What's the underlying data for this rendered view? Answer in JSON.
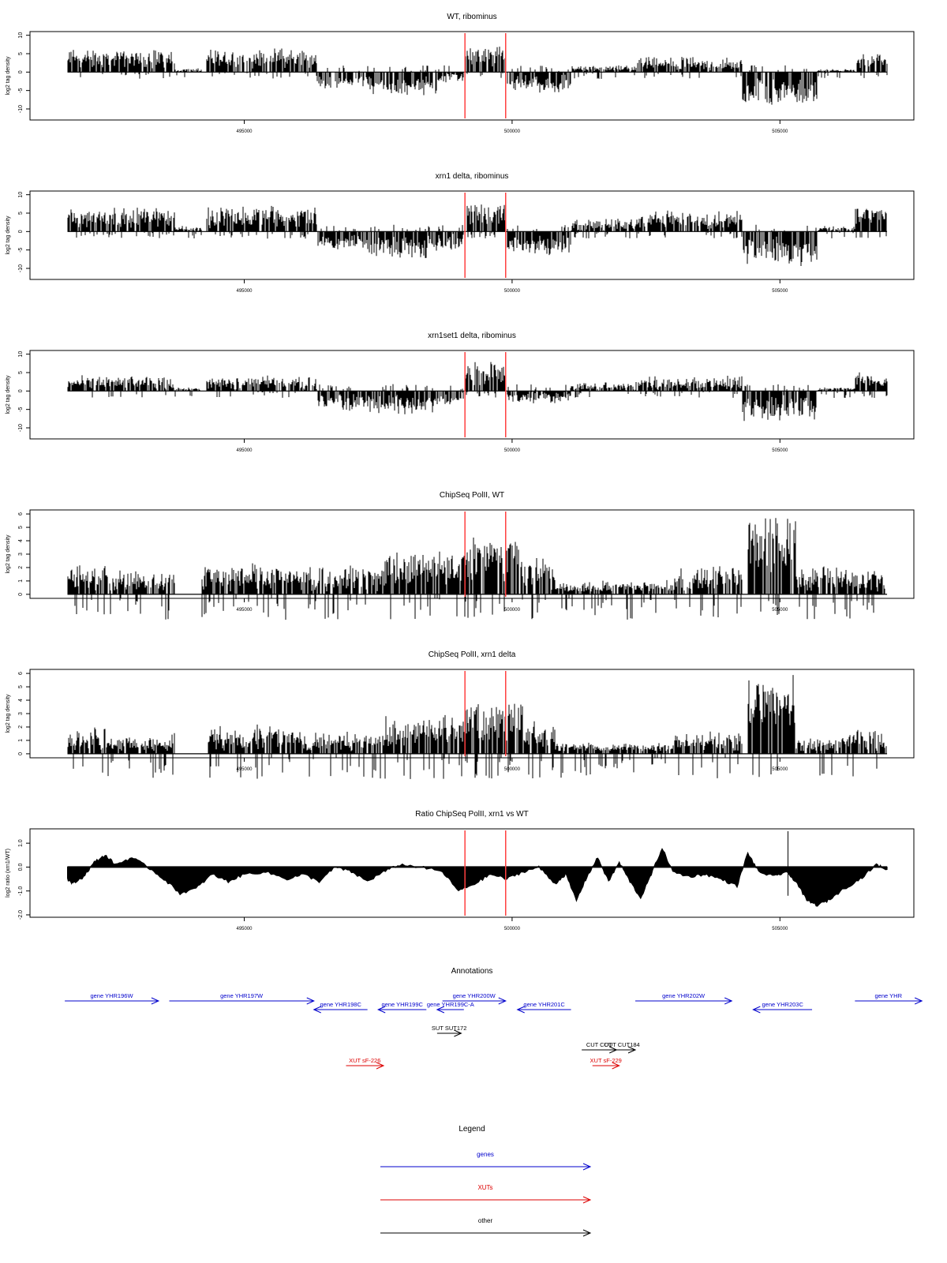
{
  "chart_data": [
    {
      "type": "bar",
      "title": "WT, ribominus",
      "ylabel": "log2 tag density",
      "ylim": [
        -13,
        11
      ],
      "yticks": [
        10,
        5,
        0,
        -5,
        -10
      ],
      "xlim": [
        491000,
        507500
      ],
      "xticks": [
        "495000",
        "500000",
        "505000"
      ],
      "markers": [
        499120,
        499880
      ],
      "series": [
        {
          "x0": 491700,
          "x1": 493700,
          "level": 5,
          "sign": 1,
          "noise": 2.2
        },
        {
          "x0": 493700,
          "x1": 494200,
          "level": 0.5,
          "sign": 1,
          "noise": 1.0
        },
        {
          "x0": 494300,
          "x1": 496350,
          "level": 5,
          "sign": 1,
          "noise": 2.2
        },
        {
          "x0": 496350,
          "x1": 497300,
          "level": 3.5,
          "sign": -1,
          "noise": 2.0
        },
        {
          "x0": 497300,
          "x1": 498600,
          "level": 5,
          "sign": -1,
          "noise": 2.2
        },
        {
          "x0": 498600,
          "x1": 499100,
          "level": 2,
          "sign": -1,
          "noise": 1.5
        },
        {
          "x0": 499120,
          "x1": 499880,
          "level": 6,
          "sign": 1,
          "noise": 2.0
        },
        {
          "x0": 499900,
          "x1": 501100,
          "level": 4.5,
          "sign": -1,
          "noise": 2.0
        },
        {
          "x0": 501100,
          "x1": 502300,
          "level": 1,
          "sign": 1,
          "noise": 2.0
        },
        {
          "x0": 502300,
          "x1": 504300,
          "level": 3,
          "sign": 1,
          "noise": 2.2
        },
        {
          "x0": 504300,
          "x1": 505700,
          "level": 7.5,
          "sign": -1,
          "noise": 3.0
        },
        {
          "x0": 505700,
          "x1": 506400,
          "level": 0.4,
          "sign": 1,
          "noise": 0.8
        },
        {
          "x0": 506400,
          "x1": 507000,
          "level": 4,
          "sign": 1,
          "noise": 2.0
        }
      ]
    },
    {
      "type": "bar",
      "title": "xrn1 delta, ribominus",
      "ylabel": "log2 tag density",
      "ylim": [
        -13,
        11
      ],
      "yticks": [
        10,
        5,
        0,
        -5,
        -10
      ],
      "xlim": [
        491000,
        507500
      ],
      "xticks": [
        "495000",
        "500000",
        "505000"
      ],
      "markers": [
        499120,
        499880
      ],
      "series": [
        {
          "x0": 491700,
          "x1": 493700,
          "level": 5.5,
          "sign": 1,
          "noise": 2.2
        },
        {
          "x0": 493700,
          "x1": 494200,
          "level": 1,
          "sign": 1,
          "noise": 1.0
        },
        {
          "x0": 494300,
          "x1": 496350,
          "level": 5.5,
          "sign": 1,
          "noise": 2.5
        },
        {
          "x0": 496350,
          "x1": 497300,
          "level": 4,
          "sign": -1,
          "noise": 2.5
        },
        {
          "x0": 497300,
          "x1": 498600,
          "level": 6,
          "sign": -1,
          "noise": 2.2
        },
        {
          "x0": 498600,
          "x1": 499100,
          "level": 4,
          "sign": -1,
          "noise": 2.0
        },
        {
          "x0": 499120,
          "x1": 499880,
          "level": 7,
          "sign": 1,
          "noise": 2.0
        },
        {
          "x0": 499900,
          "x1": 501100,
          "level": 5,
          "sign": -1,
          "noise": 2.0
        },
        {
          "x0": 501100,
          "x1": 502300,
          "level": 2.5,
          "sign": 1,
          "noise": 2.0
        },
        {
          "x0": 502300,
          "x1": 504300,
          "level": 4.5,
          "sign": 1,
          "noise": 2.2
        },
        {
          "x0": 504300,
          "x1": 505700,
          "level": 7.5,
          "sign": -1,
          "noise": 3.0
        },
        {
          "x0": 505700,
          "x1": 506400,
          "level": 1,
          "sign": 1,
          "noise": 1.0
        },
        {
          "x0": 506400,
          "x1": 507000,
          "level": 6,
          "sign": 1,
          "noise": 2.5
        }
      ]
    },
    {
      "type": "bar",
      "title": "xrn1set1 delta, ribominus",
      "ylabel": "log2 tag density",
      "ylim": [
        -13,
        11
      ],
      "yticks": [
        10,
        5,
        0,
        -5,
        -10
      ],
      "xlim": [
        491000,
        507500
      ],
      "xticks": [
        "495000",
        "500000",
        "505000"
      ],
      "markers": [
        499120,
        499880
      ],
      "series": [
        {
          "x0": 491700,
          "x1": 493700,
          "level": 3,
          "sign": 1,
          "noise": 2.0
        },
        {
          "x0": 493700,
          "x1": 494200,
          "level": 0.5,
          "sign": 1,
          "noise": 1.0
        },
        {
          "x0": 494300,
          "x1": 496350,
          "level": 3,
          "sign": 1,
          "noise": 2.0
        },
        {
          "x0": 496350,
          "x1": 497300,
          "level": 4,
          "sign": -1,
          "noise": 2.5
        },
        {
          "x0": 497300,
          "x1": 498600,
          "level": 5,
          "sign": -1,
          "noise": 2.5
        },
        {
          "x0": 498600,
          "x1": 499100,
          "level": 3,
          "sign": -1,
          "noise": 2.0
        },
        {
          "x0": 499120,
          "x1": 499880,
          "level": 6.5,
          "sign": 1,
          "noise": 2.2
        },
        {
          "x0": 499900,
          "x1": 501100,
          "level": 2.5,
          "sign": -1,
          "noise": 2.0
        },
        {
          "x0": 501100,
          "x1": 502300,
          "level": 1.5,
          "sign": 1,
          "noise": 2.0
        },
        {
          "x0": 502300,
          "x1": 504300,
          "level": 3,
          "sign": 1,
          "noise": 2.2
        },
        {
          "x0": 504300,
          "x1": 505700,
          "level": 6.5,
          "sign": -1,
          "noise": 3.0
        },
        {
          "x0": 505700,
          "x1": 506400,
          "level": 0.5,
          "sign": 1,
          "noise": 1.0
        },
        {
          "x0": 506400,
          "x1": 507000,
          "level": 4,
          "sign": 1,
          "noise": 2.0
        }
      ]
    },
    {
      "type": "bar",
      "title": "ChipSeq PolII, WT",
      "ylabel": "log2 tag density",
      "ylim": [
        -0.3,
        6.3
      ],
      "yticks": [
        0,
        1,
        2,
        3,
        4,
        5,
        6
      ],
      "xlim": [
        491000,
        507500
      ],
      "xticks": [
        "495000",
        "500000",
        "505000"
      ],
      "markers": [
        499120,
        499880
      ],
      "series": [
        {
          "x0": 491700,
          "x1": 492500,
          "level": 1.8,
          "sign": 1,
          "noise": 0.9
        },
        {
          "x0": 492500,
          "x1": 493700,
          "level": 1.3,
          "sign": 1,
          "noise": 1.0
        },
        {
          "x0": 494200,
          "x1": 496000,
          "level": 1.8,
          "sign": 1,
          "noise": 0.9
        },
        {
          "x0": 496000,
          "x1": 497600,
          "level": 1.6,
          "sign": 1,
          "noise": 1.0
        },
        {
          "x0": 497600,
          "x1": 499100,
          "level": 2.7,
          "sign": 1,
          "noise": 0.9
        },
        {
          "x0": 499100,
          "x1": 500200,
          "level": 3.6,
          "sign": 1,
          "noise": 0.8
        },
        {
          "x0": 500200,
          "x1": 500800,
          "level": 2.2,
          "sign": 1,
          "noise": 0.9
        },
        {
          "x0": 500800,
          "x1": 503000,
          "level": 0.6,
          "sign": 1,
          "noise": 0.9
        },
        {
          "x0": 503000,
          "x1": 504300,
          "level": 1.5,
          "sign": 1,
          "noise": 1.0
        },
        {
          "x0": 504400,
          "x1": 505300,
          "level": 5.4,
          "sign": 1,
          "noise": 0.8
        },
        {
          "x0": 505300,
          "x1": 506200,
          "level": 1.7,
          "sign": 1,
          "noise": 0.9
        },
        {
          "x0": 506200,
          "x1": 507000,
          "level": 1.5,
          "sign": 1,
          "noise": 1.0
        }
      ]
    },
    {
      "type": "bar",
      "title": "ChipSeq PolII, xrn1 delta",
      "ylabel": "log2 tag density",
      "ylim": [
        -0.3,
        6.3
      ],
      "yticks": [
        0,
        1,
        2,
        3,
        4,
        5,
        6
      ],
      "xlim": [
        491000,
        507500
      ],
      "xticks": [
        "495000",
        "500000",
        "505000"
      ],
      "markers": [
        499120,
        499880
      ],
      "series": [
        {
          "x0": 491700,
          "x1": 492500,
          "level": 1.5,
          "sign": 1,
          "noise": 0.9
        },
        {
          "x0": 492500,
          "x1": 493700,
          "level": 1.0,
          "sign": 1,
          "noise": 0.9
        },
        {
          "x0": 494300,
          "x1": 496000,
          "level": 1.6,
          "sign": 1,
          "noise": 0.9
        },
        {
          "x0": 496000,
          "x1": 497600,
          "level": 1.2,
          "sign": 1,
          "noise": 0.9
        },
        {
          "x0": 497600,
          "x1": 499100,
          "level": 2.4,
          "sign": 1,
          "noise": 0.9
        },
        {
          "x0": 499100,
          "x1": 500200,
          "level": 3.3,
          "sign": 1,
          "noise": 0.8
        },
        {
          "x0": 500200,
          "x1": 500800,
          "level": 2.0,
          "sign": 1,
          "noise": 0.9
        },
        {
          "x0": 500800,
          "x1": 503000,
          "level": 0.4,
          "sign": 1,
          "noise": 0.8
        },
        {
          "x0": 503000,
          "x1": 504300,
          "level": 1.2,
          "sign": 1,
          "noise": 0.9
        },
        {
          "x0": 504400,
          "x1": 505300,
          "level": 5.0,
          "sign": 1,
          "noise": 0.8
        },
        {
          "x0": 505300,
          "x1": 506200,
          "level": 0.8,
          "sign": 1,
          "noise": 0.8
        },
        {
          "x0": 506200,
          "x1": 507000,
          "level": 1.4,
          "sign": 1,
          "noise": 0.9
        }
      ]
    },
    {
      "type": "area",
      "title": "Ratio ChipSeq PolII, xrn1 vs WT",
      "ylabel": "log2 ratio (xrn1/WT)",
      "ylim": [
        -2.1,
        1.6
      ],
      "yticks": [
        1.0,
        0.0,
        -1.0,
        -2.0
      ],
      "ytick_labels": [
        "1.0",
        "0.0",
        "-1.0",
        "-2.0"
      ],
      "xlim": [
        491000,
        507500
      ],
      "xticks": [
        "495000",
        "500000",
        "505000"
      ],
      "markers": [
        499120,
        499880
      ],
      "spike": {
        "x": 505150,
        "hi": 1.5,
        "lo": -1.2
      },
      "points": [
        [
          491700,
          -0.5
        ],
        [
          491800,
          -0.7
        ],
        [
          492000,
          -0.4
        ],
        [
          492200,
          0.2
        ],
        [
          492400,
          0.5
        ],
        [
          492600,
          0.1
        ],
        [
          492900,
          0.4
        ],
        [
          493200,
          0.0
        ],
        [
          493500,
          -0.5
        ],
        [
          493800,
          -1.1
        ],
        [
          494100,
          -0.9
        ],
        [
          494400,
          -0.3
        ],
        [
          494700,
          -0.6
        ],
        [
          495000,
          -0.3
        ],
        [
          495400,
          -0.2
        ],
        [
          495800,
          -0.5
        ],
        [
          496100,
          -0.3
        ],
        [
          496400,
          -0.6
        ],
        [
          496700,
          0.0
        ],
        [
          497000,
          -0.2
        ],
        [
          497300,
          -0.6
        ],
        [
          497600,
          -0.2
        ],
        [
          497900,
          0.1
        ],
        [
          498300,
          0.0
        ],
        [
          498700,
          -0.2
        ],
        [
          499000,
          -1.0
        ],
        [
          499300,
          -0.7
        ],
        [
          499600,
          -0.3
        ],
        [
          499900,
          -0.5
        ],
        [
          500200,
          -0.2
        ],
        [
          500500,
          0.0
        ],
        [
          500800,
          -0.7
        ],
        [
          501000,
          -0.3
        ],
        [
          501200,
          -1.4
        ],
        [
          501400,
          -0.4
        ],
        [
          501600,
          0.4
        ],
        [
          501800,
          -0.6
        ],
        [
          502000,
          0.2
        ],
        [
          502200,
          -0.6
        ],
        [
          502400,
          -1.3
        ],
        [
          502600,
          -0.3
        ],
        [
          502800,
          0.8
        ],
        [
          503000,
          -0.2
        ],
        [
          503300,
          -0.4
        ],
        [
          503600,
          -0.3
        ],
        [
          503900,
          -0.5
        ],
        [
          504200,
          -0.8
        ],
        [
          504400,
          0.6
        ],
        [
          504600,
          -0.2
        ],
        [
          504900,
          -0.4
        ],
        [
          505100,
          -0.2
        ],
        [
          505300,
          -0.6
        ],
        [
          505500,
          -1.4
        ],
        [
          505700,
          -1.6
        ],
        [
          505900,
          -1.4
        ],
        [
          506200,
          -0.9
        ],
        [
          506500,
          -0.5
        ],
        [
          506800,
          0.1
        ],
        [
          507000,
          -0.1
        ]
      ]
    }
  ],
  "annotations": {
    "title": "Annotations",
    "xlim": [
      491000,
      507500
    ],
    "features": [
      {
        "label": "gene YHR196W",
        "x0": 491650,
        "x1": 493400,
        "row": 0,
        "dir": 1,
        "color": "#0000cc"
      },
      {
        "label": "gene YHR197W",
        "x0": 493600,
        "x1": 496300,
        "row": 0,
        "dir": 1,
        "color": "#0000cc"
      },
      {
        "label": "gene YHR198C",
        "x0": 496300,
        "x1": 497300,
        "row": 1,
        "dir": -1,
        "color": "#0000cc"
      },
      {
        "label": "gene YHR199C",
        "x0": 497500,
        "x1": 498400,
        "row": 1,
        "dir": -1,
        "color": "#0000cc"
      },
      {
        "label": "gene YHR199C-A",
        "x0": 498600,
        "x1": 499100,
        "row": 1,
        "dir": -1,
        "color": "#0000cc"
      },
      {
        "label": "gene YHR200W",
        "x0": 498700,
        "x1": 499880,
        "row": 0,
        "dir": 1,
        "color": "#0000cc"
      },
      {
        "label": "gene YHR201C",
        "x0": 500100,
        "x1": 501100,
        "row": 1,
        "dir": -1,
        "color": "#0000cc"
      },
      {
        "label": "gene YHR202W",
        "x0": 502300,
        "x1": 504100,
        "row": 0,
        "dir": 1,
        "color": "#0000cc"
      },
      {
        "label": "gene YHR203C",
        "x0": 504500,
        "x1": 505600,
        "row": 1,
        "dir": -1,
        "color": "#0000cc"
      },
      {
        "label": "gene YHR",
        "x0": 506400,
        "x1": 507650,
        "row": 0,
        "dir": 1,
        "color": "#0000cc"
      },
      {
        "label": "SUT SUT172",
        "x0": 498600,
        "x1": 499050,
        "row": 2,
        "dir": 1,
        "color": "#000000"
      },
      {
        "label": "CUT CUT",
        "x0": 501300,
        "x1": 501950,
        "row": 3,
        "dir": 1,
        "color": "#000000"
      },
      {
        "label": "CUT CUT184",
        "x0": 501800,
        "x1": 502300,
        "row": 3,
        "dir": 1,
        "color": "#000000"
      },
      {
        "label": "XUT sF-226",
        "x0": 496900,
        "x1": 497600,
        "row": 4,
        "dir": 1,
        "color": "#dd0000"
      },
      {
        "label": "XUT sF-229",
        "x0": 501500,
        "x1": 502000,
        "row": 4,
        "dir": 1,
        "color": "#dd0000"
      }
    ]
  },
  "legend": {
    "title": "Legend",
    "items": [
      {
        "label": "genes",
        "color": "#0000cc"
      },
      {
        "label": "XUTs",
        "color": "#dd0000"
      },
      {
        "label": "other",
        "color": "#000000"
      }
    ]
  },
  "colors": {
    "marker": "#ff4040",
    "axis": "#000000",
    "bars": "#000000"
  }
}
